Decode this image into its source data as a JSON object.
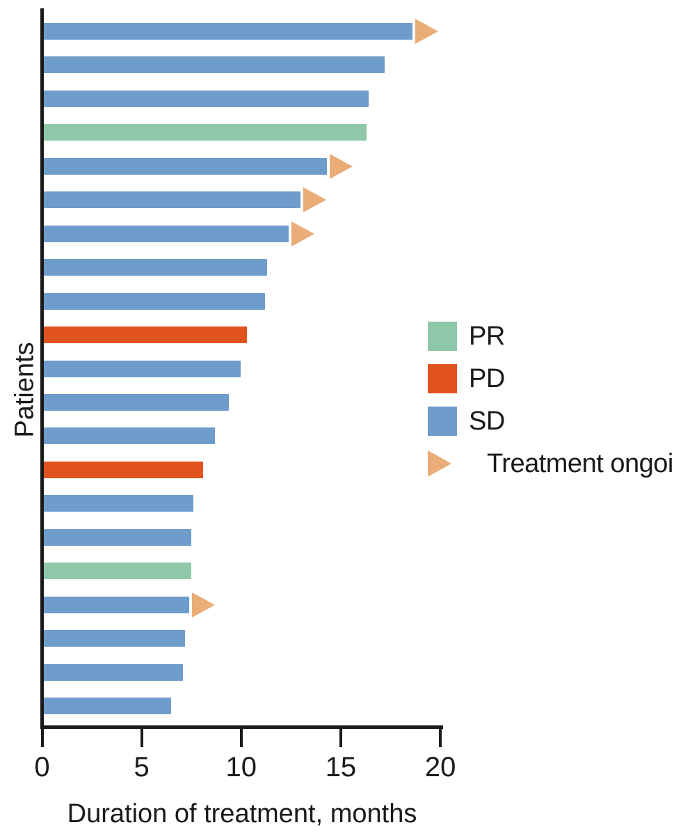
{
  "colors": {
    "PR": "#8FC8A8",
    "PD": "#E0531F",
    "SD": "#6E9CCB",
    "ongoing": "#EAAD78",
    "axis": "#1a1a1a"
  },
  "legend": {
    "items": [
      {
        "key": "PR",
        "label": "PR"
      },
      {
        "key": "PD",
        "label": "PD"
      },
      {
        "key": "SD",
        "label": "SD"
      },
      {
        "key": "ongoing",
        "label": "Treatment ongoing"
      }
    ]
  },
  "chart_data": {
    "type": "bar",
    "orientation": "horizontal",
    "title": "",
    "xlabel": "Duration of treatment, months",
    "ylabel": "Patients",
    "xlim": [
      0,
      20
    ],
    "x_ticks": [
      0,
      5,
      10,
      15,
      20
    ],
    "grid": false,
    "legend_position": "right-middle",
    "legend_entries": [
      "PR",
      "PD",
      "SD",
      "Treatment ongoing"
    ],
    "patients": [
      {
        "id": 1,
        "response": "SD",
        "months": 18.5,
        "ongoing": true
      },
      {
        "id": 2,
        "response": "SD",
        "months": 17.1,
        "ongoing": false
      },
      {
        "id": 3,
        "response": "SD",
        "months": 16.3,
        "ongoing": false
      },
      {
        "id": 4,
        "response": "PR",
        "months": 16.2,
        "ongoing": false
      },
      {
        "id": 5,
        "response": "SD",
        "months": 14.2,
        "ongoing": true
      },
      {
        "id": 6,
        "response": "SD",
        "months": 12.9,
        "ongoing": true
      },
      {
        "id": 7,
        "response": "SD",
        "months": 12.3,
        "ongoing": true
      },
      {
        "id": 8,
        "response": "SD",
        "months": 11.2,
        "ongoing": false
      },
      {
        "id": 9,
        "response": "SD",
        "months": 11.1,
        "ongoing": false
      },
      {
        "id": 10,
        "response": "PD",
        "months": 10.2,
        "ongoing": false
      },
      {
        "id": 11,
        "response": "SD",
        "months": 9.9,
        "ongoing": false
      },
      {
        "id": 12,
        "response": "SD",
        "months": 9.3,
        "ongoing": false
      },
      {
        "id": 13,
        "response": "SD",
        "months": 8.6,
        "ongoing": false
      },
      {
        "id": 14,
        "response": "PD",
        "months": 8.0,
        "ongoing": false
      },
      {
        "id": 15,
        "response": "SD",
        "months": 7.5,
        "ongoing": false
      },
      {
        "id": 16,
        "response": "SD",
        "months": 7.4,
        "ongoing": false
      },
      {
        "id": 17,
        "response": "PR",
        "months": 7.4,
        "ongoing": false
      },
      {
        "id": 18,
        "response": "SD",
        "months": 7.3,
        "ongoing": true
      },
      {
        "id": 19,
        "response": "SD",
        "months": 7.1,
        "ongoing": false
      },
      {
        "id": 20,
        "response": "SD",
        "months": 7.0,
        "ongoing": false
      },
      {
        "id": 21,
        "response": "SD",
        "months": 6.4,
        "ongoing": false
      }
    ]
  }
}
